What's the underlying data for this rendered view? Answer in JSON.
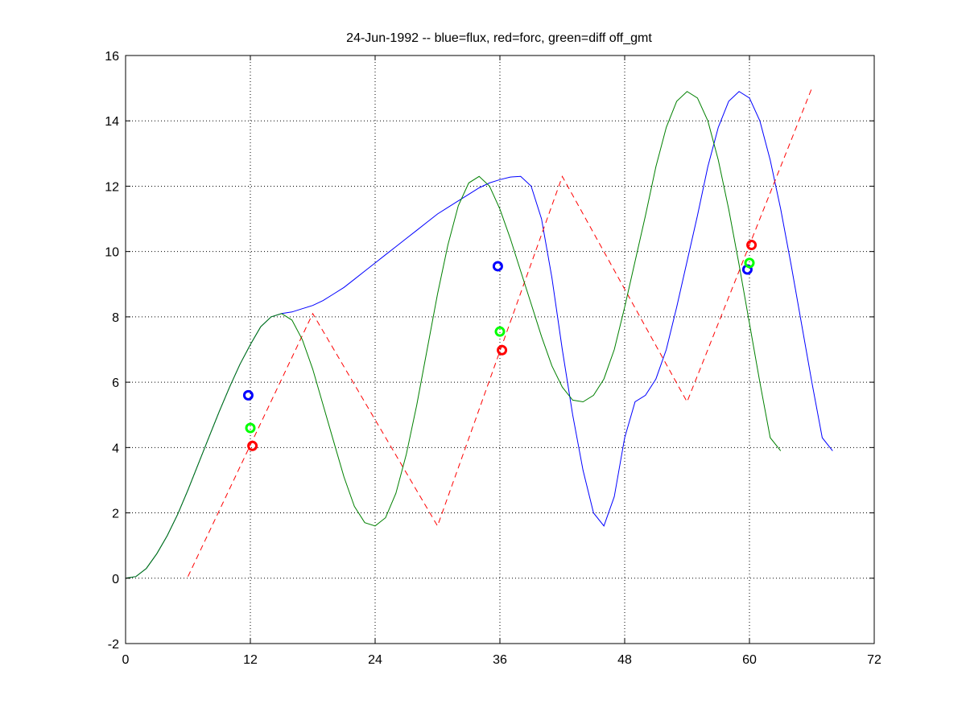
{
  "chart_data": {
    "type": "line",
    "title": "24-Jun-1992 -- blue=flux, red=forc, green=diff off_gmt",
    "xlabel": "",
    "ylabel": "",
    "xlim": [
      0,
      72
    ],
    "ylim": [
      -2,
      16
    ],
    "xticks": [
      0,
      12,
      24,
      36,
      48,
      60,
      72
    ],
    "yticks": [
      -2,
      0,
      2,
      4,
      6,
      8,
      10,
      12,
      14,
      16
    ],
    "grid": true,
    "series": [
      {
        "color": "#0000ff",
        "style": "solid",
        "points": [
          [
            0,
            0
          ],
          [
            1,
            0.05
          ],
          [
            2,
            0.3
          ],
          [
            3,
            0.75
          ],
          [
            4,
            1.3
          ],
          [
            5,
            1.95
          ],
          [
            6,
            2.7
          ],
          [
            7,
            3.5
          ],
          [
            8,
            4.3
          ],
          [
            9,
            5.1
          ],
          [
            10,
            5.85
          ],
          [
            11,
            6.55
          ],
          [
            12,
            7.15
          ],
          [
            13,
            7.7
          ],
          [
            14,
            8.0
          ],
          [
            15,
            8.1
          ],
          [
            16,
            8.15
          ],
          [
            17,
            8.25
          ],
          [
            18,
            8.35
          ],
          [
            19,
            8.5
          ],
          [
            20,
            8.7
          ],
          [
            21,
            8.9
          ],
          [
            22,
            9.15
          ],
          [
            23,
            9.4
          ],
          [
            24,
            9.65
          ],
          [
            25,
            9.9
          ],
          [
            26,
            10.15
          ],
          [
            27,
            10.4
          ],
          [
            28,
            10.65
          ],
          [
            29,
            10.9
          ],
          [
            30,
            11.15
          ],
          [
            31,
            11.35
          ],
          [
            32,
            11.55
          ],
          [
            33,
            11.75
          ],
          [
            34,
            11.95
          ],
          [
            35,
            12.1
          ],
          [
            36,
            12.2
          ],
          [
            37,
            12.28
          ],
          [
            38,
            12.3
          ],
          [
            39,
            12.0
          ],
          [
            40,
            11.0
          ],
          [
            41,
            9.2
          ],
          [
            42,
            7.0
          ],
          [
            43,
            5.0
          ],
          [
            44,
            3.3
          ],
          [
            45,
            2.0
          ],
          [
            46,
            1.6
          ],
          [
            47,
            2.5
          ],
          [
            48,
            4.3
          ],
          [
            49,
            5.4
          ],
          [
            50,
            5.6
          ],
          [
            51,
            6.1
          ],
          [
            52,
            7.0
          ],
          [
            53,
            8.3
          ],
          [
            54,
            9.7
          ],
          [
            55,
            11.1
          ],
          [
            56,
            12.6
          ],
          [
            57,
            13.8
          ],
          [
            58,
            14.6
          ],
          [
            59,
            14.9
          ],
          [
            60,
            14.7
          ],
          [
            61,
            14.0
          ],
          [
            62,
            12.8
          ],
          [
            63,
            11.3
          ],
          [
            64,
            9.6
          ],
          [
            65,
            7.8
          ],
          [
            66,
            6.0
          ],
          [
            67,
            4.3
          ],
          [
            68,
            3.9
          ]
        ]
      },
      {
        "color": "#ff0000",
        "style": "dashed",
        "points": [
          [
            6,
            0.05
          ],
          [
            18,
            8.1
          ],
          [
            30,
            1.6
          ],
          [
            42,
            12.3
          ],
          [
            54,
            5.4
          ],
          [
            66,
            15.0
          ]
        ]
      },
      {
        "color": "#008000",
        "style": "solid",
        "points": [
          [
            0,
            0
          ],
          [
            1,
            0.05
          ],
          [
            2,
            0.3
          ],
          [
            3,
            0.75
          ],
          [
            4,
            1.3
          ],
          [
            5,
            1.95
          ],
          [
            6,
            2.7
          ],
          [
            7,
            3.5
          ],
          [
            8,
            4.3
          ],
          [
            9,
            5.1
          ],
          [
            10,
            5.85
          ],
          [
            11,
            6.55
          ],
          [
            12,
            7.15
          ],
          [
            13,
            7.7
          ],
          [
            14,
            8.0
          ],
          [
            15,
            8.1
          ],
          [
            16,
            7.9
          ],
          [
            17,
            7.3
          ],
          [
            18,
            6.4
          ],
          [
            19,
            5.3
          ],
          [
            20,
            4.2
          ],
          [
            21,
            3.1
          ],
          [
            22,
            2.2
          ],
          [
            23,
            1.7
          ],
          [
            24,
            1.6
          ],
          [
            25,
            1.85
          ],
          [
            26,
            2.6
          ],
          [
            27,
            3.8
          ],
          [
            28,
            5.3
          ],
          [
            29,
            7.0
          ],
          [
            30,
            8.7
          ],
          [
            31,
            10.2
          ],
          [
            32,
            11.4
          ],
          [
            33,
            12.1
          ],
          [
            34,
            12.3
          ],
          [
            35,
            12.0
          ],
          [
            36,
            11.3
          ],
          [
            37,
            10.4
          ],
          [
            38,
            9.4
          ],
          [
            39,
            8.4
          ],
          [
            40,
            7.4
          ],
          [
            41,
            6.5
          ],
          [
            42,
            5.85
          ],
          [
            43,
            5.45
          ],
          [
            44,
            5.4
          ],
          [
            45,
            5.6
          ],
          [
            46,
            6.1
          ],
          [
            47,
            7.0
          ],
          [
            48,
            8.3
          ],
          [
            49,
            9.7
          ],
          [
            50,
            11.1
          ],
          [
            51,
            12.6
          ],
          [
            52,
            13.8
          ],
          [
            53,
            14.6
          ],
          [
            54,
            14.9
          ],
          [
            55,
            14.7
          ],
          [
            56,
            14.0
          ],
          [
            57,
            12.8
          ],
          [
            58,
            11.3
          ],
          [
            59,
            9.6
          ],
          [
            60,
            7.8
          ],
          [
            61,
            6.0
          ],
          [
            62,
            4.3
          ],
          [
            63,
            3.9
          ]
        ]
      }
    ],
    "markers": [
      {
        "color": "#0000ff",
        "x": 11.8,
        "y": 5.6
      },
      {
        "color": "#00ff00",
        "x": 12.0,
        "y": 4.6
      },
      {
        "color": "#ff0000",
        "x": 12.2,
        "y": 4.05
      },
      {
        "color": "#0000ff",
        "x": 35.8,
        "y": 9.55
      },
      {
        "color": "#00ff00",
        "x": 36.0,
        "y": 7.55
      },
      {
        "color": "#ff0000",
        "x": 36.2,
        "y": 6.98
      },
      {
        "color": "#0000ff",
        "x": 59.8,
        "y": 9.45
      },
      {
        "color": "#00ff00",
        "x": 60.0,
        "y": 9.65
      },
      {
        "color": "#ff0000",
        "x": 60.2,
        "y": 10.2
      }
    ]
  }
}
